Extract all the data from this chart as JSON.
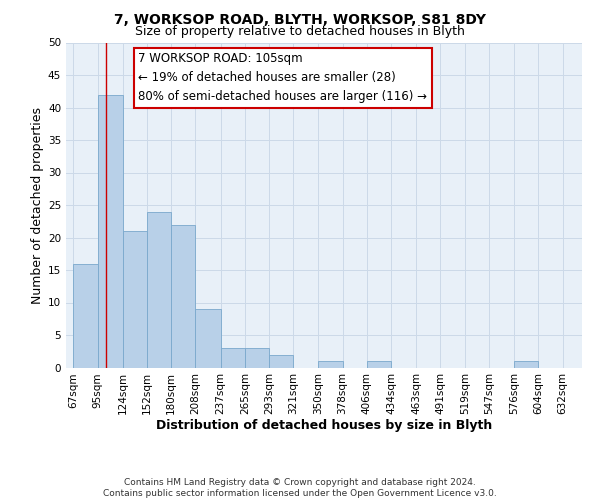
{
  "title": "7, WORKSOP ROAD, BLYTH, WORKSOP, S81 8DY",
  "subtitle": "Size of property relative to detached houses in Blyth",
  "xlabel": "Distribution of detached houses by size in Blyth",
  "ylabel": "Number of detached properties",
  "bin_edges": [
    67,
    95,
    124,
    152,
    180,
    208,
    237,
    265,
    293,
    321,
    350,
    378,
    406,
    434,
    463,
    491,
    519,
    547,
    576,
    604,
    632
  ],
  "bin_labels": [
    "67sqm",
    "95sqm",
    "124sqm",
    "152sqm",
    "180sqm",
    "208sqm",
    "237sqm",
    "265sqm",
    "293sqm",
    "321sqm",
    "350sqm",
    "378sqm",
    "406sqm",
    "434sqm",
    "463sqm",
    "491sqm",
    "519sqm",
    "547sqm",
    "576sqm",
    "604sqm",
    "632sqm"
  ],
  "counts": [
    16,
    42,
    21,
    24,
    22,
    9,
    3,
    3,
    2,
    0,
    1,
    0,
    1,
    0,
    0,
    0,
    0,
    0,
    1,
    0
  ],
  "bar_color": "#b8d0e8",
  "bar_edgecolor": "#7aa8cc",
  "property_line_x": 105,
  "property_line_color": "#cc0000",
  "ylim": [
    0,
    50
  ],
  "yticks": [
    0,
    5,
    10,
    15,
    20,
    25,
    30,
    35,
    40,
    45,
    50
  ],
  "annotation_box_text": "7 WORKSOP ROAD: 105sqm\n← 19% of detached houses are smaller (28)\n80% of semi-detached houses are larger (116) →",
  "annotation_box_edgecolor": "#cc0000",
  "annotation_box_facecolor": "#ffffff",
  "footer_line1": "Contains HM Land Registry data © Crown copyright and database right 2024.",
  "footer_line2": "Contains public sector information licensed under the Open Government Licence v3.0.",
  "background_color": "#ffffff",
  "grid_color": "#ccd9e8",
  "title_fontsize": 10,
  "subtitle_fontsize": 9,
  "label_fontsize": 9,
  "tick_fontsize": 7.5,
  "annotation_fontsize": 8.5,
  "footer_fontsize": 6.5
}
